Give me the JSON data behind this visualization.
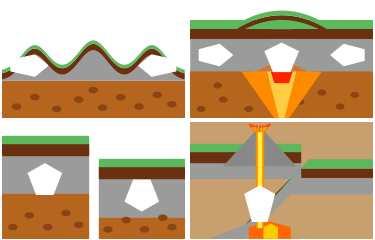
{
  "colors": {
    "green": "#5cb85c",
    "dark_brown": "#7a3b10",
    "mid_brown": "#b5651d",
    "orange_brown": "#c87941",
    "spot_brown": "#8B4513",
    "gray": "#9b9b9b",
    "gray_dark": "#888888",
    "orange": "#ff8c00",
    "lava_orange": "#ffaa00",
    "lava_red": "#ff4400",
    "white": "#ffffff",
    "light_bg": "#d2b48c",
    "mantle_tan": "#c8a070"
  }
}
